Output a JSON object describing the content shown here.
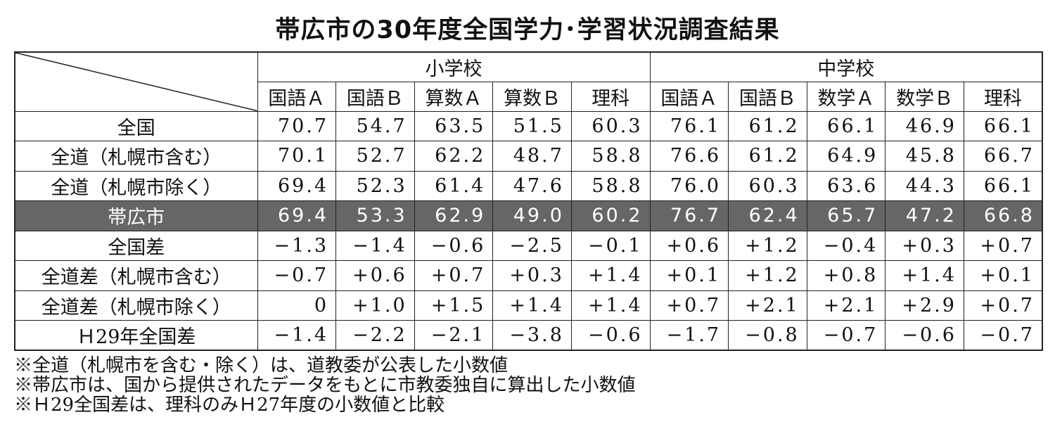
{
  "title": "帯広市の30年度全国学力･学習状況調査結果",
  "table": {
    "groups": [
      {
        "name": "小学校",
        "subjects": [
          "国語Ａ",
          "国語Ｂ",
          "算数Ａ",
          "算数Ｂ",
          "理科"
        ]
      },
      {
        "name": "中学校",
        "subjects": [
          "国語Ａ",
          "国語Ｂ",
          "数学Ａ",
          "数学Ｂ",
          "理科"
        ]
      }
    ],
    "rows": [
      {
        "label": "全国",
        "values": [
          "70.7",
          "54.7",
          "63.5",
          "51.5",
          "60.3",
          "76.1",
          "61.2",
          "66.1",
          "46.9",
          "66.1"
        ]
      },
      {
        "label": "全道（札幌市含む）",
        "values": [
          "70.1",
          "52.7",
          "62.2",
          "48.7",
          "58.8",
          "76.6",
          "61.2",
          "64.9",
          "45.8",
          "66.7"
        ]
      },
      {
        "label": "全道（札幌市除く）",
        "values": [
          "69.4",
          "52.3",
          "61.4",
          "47.6",
          "58.8",
          "76.0",
          "60.3",
          "63.6",
          "44.3",
          "66.1"
        ]
      },
      {
        "label": "帯広市",
        "values": [
          "69.4",
          "53.3",
          "62.9",
          "49.0",
          "60.2",
          "76.7",
          "62.4",
          "65.7",
          "47.2",
          "66.8"
        ]
      },
      {
        "label": "全国差",
        "values": [
          "−1.3",
          "−1.4",
          "−0.6",
          "−2.5",
          "−0.1",
          "+0.6",
          "+1.2",
          "−0.4",
          "+0.3",
          "+0.7"
        ]
      },
      {
        "label": "全道差（札幌市含む）",
        "values": [
          "−0.7",
          "+0.6",
          "+0.7",
          "+0.3",
          "+1.4",
          "+0.1",
          "+1.2",
          "+0.8",
          "+1.4",
          "+0.1"
        ]
      },
      {
        "label": "全道差（札幌市除く）",
        "values": [
          "0",
          "+1.0",
          "+1.5",
          "+1.4",
          "+1.4",
          "+0.7",
          "+2.1",
          "+2.1",
          "+2.9",
          "+0.7"
        ]
      },
      {
        "label": "Ｈ29年全国差",
        "values": [
          "−1.4",
          "−2.2",
          "−2.1",
          "−3.8",
          "−0.6",
          "−1.7",
          "−0.8",
          "−0.7",
          "−0.6",
          "−0.7"
        ]
      }
    ]
  },
  "notes": [
    "※全道（札幌市を含む・除く）は、道教委が公表した小数値",
    "※帯広市は、国から提供されたデータをもとに市教委独自に算出した小数値",
    "※Ｈ29全国差は、理科のみＨ27年度の小数値と比較"
  ]
}
